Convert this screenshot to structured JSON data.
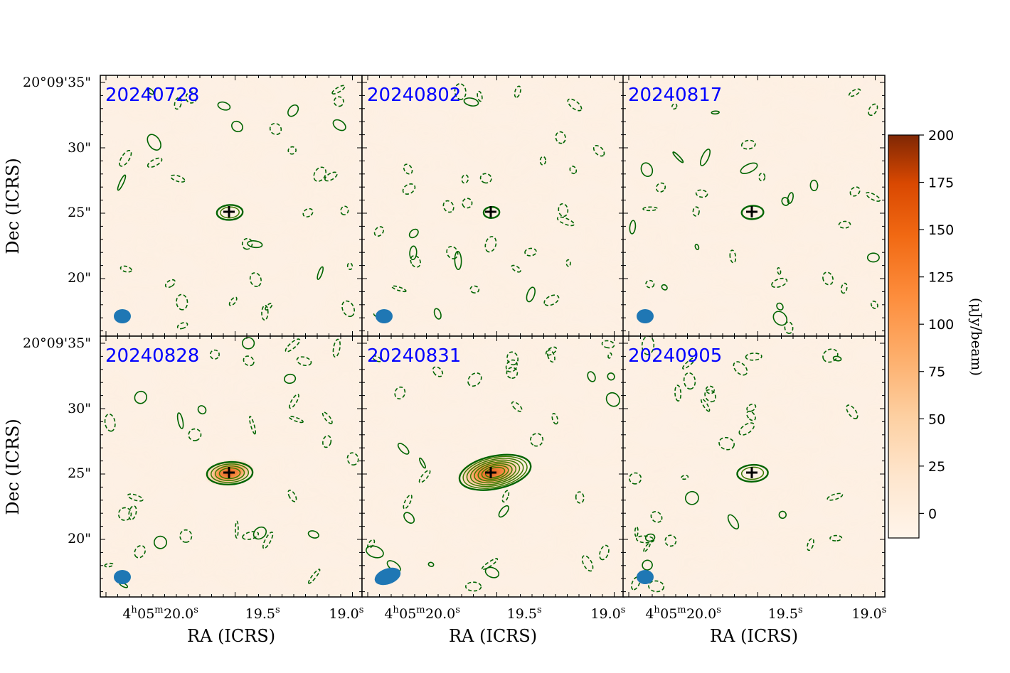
{
  "chart_data": {
    "type": "contour-map-grid",
    "panels": [
      {
        "label": "20240728",
        "source_strength": 0.22,
        "beam": "small"
      },
      {
        "label": "20240802",
        "source_strength": 0.05,
        "beam": "small"
      },
      {
        "label": "20240817",
        "source_strength": 0.15,
        "beam": "small"
      },
      {
        "label": "20240828",
        "source_strength": 0.55,
        "beam": "small"
      },
      {
        "label": "20240831",
        "source_strength": 1.0,
        "beam": "large"
      },
      {
        "label": "20240905",
        "source_strength": 0.3,
        "beam": "small"
      }
    ],
    "xlabel": "RA (ICRS)",
    "ylabel": "Dec (ICRS)",
    "x_ticks": [
      {
        "base": "4",
        "sup1": "h",
        "mid": "05",
        "sup2": "m",
        "tail": "20.0",
        "sup3": "s"
      },
      {
        "base": "",
        "sup1": "",
        "mid": "",
        "sup2": "",
        "tail": "19.5",
        "sup3": "s"
      },
      {
        "base": "",
        "sup1": "",
        "mid": "",
        "sup2": "",
        "tail": "19.0",
        "sup3": "s"
      }
    ],
    "y_ticks": [
      "20°09'35\"",
      "30\"",
      "25\"",
      "20\""
    ],
    "colorbar": {
      "label": "(μJy/beam)",
      "ticks": [
        "200",
        "175",
        "150",
        "125",
        "100",
        "75",
        "50",
        "25",
        "0"
      ],
      "range": [
        -13,
        200
      ],
      "colors": [
        "#fff5eb",
        "#fdd0a2",
        "#fd8d3c",
        "#d94801",
        "#7f2704"
      ]
    },
    "colors": {
      "contour": "#006400",
      "beam": "#1f77b4",
      "marker": "#000000",
      "panel_label": "#0000ff"
    }
  }
}
